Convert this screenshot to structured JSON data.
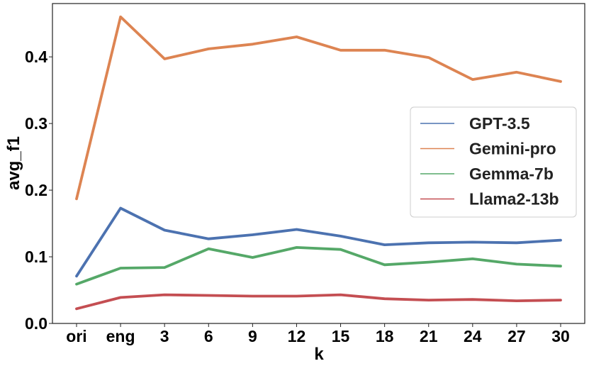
{
  "chart_data": {
    "type": "line",
    "xlabel": "k",
    "ylabel": "avg_f1",
    "categories": [
      "ori",
      "eng",
      "3",
      "6",
      "9",
      "12",
      "15",
      "18",
      "21",
      "24",
      "27",
      "30"
    ],
    "ylim": [
      0.0,
      0.48
    ],
    "yticks": [
      0.0,
      0.1,
      0.2,
      0.3,
      0.4
    ],
    "ytick_labels": [
      "0.0",
      "0.1",
      "0.2",
      "0.3",
      "0.4"
    ],
    "grid": false,
    "legend_position": "right",
    "series": [
      {
        "name": "GPT-3.5",
        "color": "#4c72b0",
        "values": [
          0.071,
          0.173,
          0.14,
          0.127,
          0.133,
          0.141,
          0.131,
          0.118,
          0.121,
          0.122,
          0.121,
          0.125
        ]
      },
      {
        "name": "Gemini-pro",
        "color": "#dd8452",
        "values": [
          0.187,
          0.46,
          0.397,
          0.412,
          0.419,
          0.43,
          0.41,
          0.41,
          0.399,
          0.366,
          0.377,
          0.363
        ]
      },
      {
        "name": "Gemma-7b",
        "color": "#55a868",
        "values": [
          0.059,
          0.083,
          0.084,
          0.112,
          0.099,
          0.114,
          0.111,
          0.088,
          0.092,
          0.097,
          0.089,
          0.086
        ]
      },
      {
        "name": "Llama2-13b",
        "color": "#c44e52",
        "values": [
          0.022,
          0.039,
          0.043,
          0.042,
          0.041,
          0.041,
          0.043,
          0.037,
          0.035,
          0.036,
          0.034,
          0.035
        ]
      }
    ]
  }
}
